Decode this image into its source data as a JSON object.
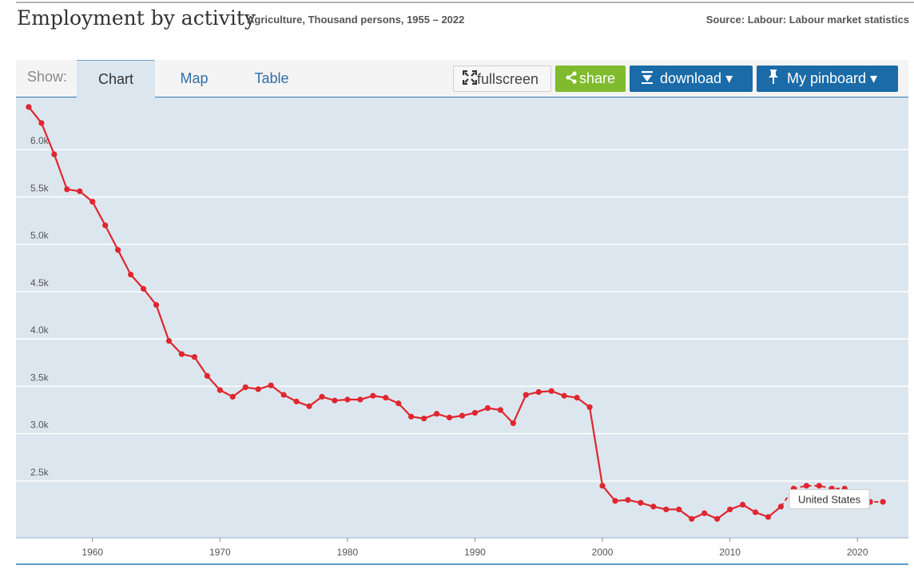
{
  "header": {
    "title": "Employment by activity",
    "subtitle": "Agriculture, Thousand persons, 1955 – 2022",
    "source": "Source: Labour: Labour market statistics"
  },
  "toolbar": {
    "show_label": "Show:",
    "tabs": [
      {
        "label": "Chart",
        "active": true
      },
      {
        "label": "Map",
        "active": false
      },
      {
        "label": "Table",
        "active": false
      }
    ],
    "fullscreen_label": "fullscreen",
    "share_label": "share",
    "download_label": "download ▾",
    "pinboard_label": "My pinboard ▾"
  },
  "colors": {
    "series": "#e0262e",
    "plot_bg": "#dce6ef",
    "gridline": "#ffffff",
    "accent_blue": "#1a6ba7",
    "share_green": "#7fbb2d"
  },
  "chart_data": {
    "type": "line",
    "title": "Employment by activity",
    "subtitle": "Agriculture, Thousand persons, 1955 – 2022",
    "xlabel": "",
    "ylabel": "",
    "ylim": [
      1900,
      6550
    ],
    "xlim": [
      1954,
      2024
    ],
    "y_ticks": [
      2500,
      3000,
      3500,
      4000,
      4500,
      5000,
      5500,
      6000
    ],
    "y_tick_labels": [
      "2.5k",
      "3.0k",
      "3.5k",
      "4.0k",
      "4.5k",
      "5.0k",
      "5.5k",
      "6.0k"
    ],
    "x_ticks": [
      1960,
      1970,
      1980,
      1990,
      2000,
      2010,
      2020
    ],
    "x_tick_labels": [
      "1960",
      "1970",
      "1980",
      "1990",
      "2000",
      "2010",
      "2020"
    ],
    "grid": true,
    "series": [
      {
        "name": "United States",
        "x": [
          1955,
          1956,
          1957,
          1958,
          1959,
          1960,
          1961,
          1962,
          1963,
          1964,
          1965,
          1966,
          1967,
          1968,
          1969,
          1970,
          1971,
          1972,
          1973,
          1974,
          1975,
          1976,
          1977,
          1978,
          1979,
          1980,
          1981,
          1982,
          1983,
          1984,
          1985,
          1986,
          1987,
          1988,
          1989,
          1990,
          1991,
          1992,
          1993,
          1994,
          1995,
          1996,
          1997,
          1998,
          1999,
          2000,
          2001,
          2002,
          2003,
          2004,
          2005,
          2006,
          2007,
          2008,
          2009,
          2010,
          2011,
          2012,
          2013,
          2014,
          2015,
          2016,
          2017,
          2018,
          2019,
          2020,
          2021,
          2022
        ],
        "values": [
          6450,
          6280,
          5950,
          5580,
          5560,
          5450,
          5200,
          4940,
          4680,
          4530,
          4360,
          3980,
          3840,
          3810,
          3610,
          3460,
          3390,
          3490,
          3470,
          3510,
          3410,
          3340,
          3290,
          3390,
          3350,
          3360,
          3360,
          3400,
          3380,
          3320,
          3180,
          3160,
          3210,
          3170,
          3190,
          3220,
          3270,
          3250,
          3110,
          3410,
          3440,
          3450,
          3400,
          3380,
          3280,
          2450,
          2290,
          2300,
          2270,
          2230,
          2200,
          2200,
          2100,
          2160,
          2100,
          2200,
          2250,
          2170,
          2120,
          2230,
          2420,
          2450,
          2450,
          2420,
          2420,
          2300,
          2280,
          2280
        ]
      }
    ],
    "annotations": [
      {
        "text": "United States"
      }
    ]
  }
}
